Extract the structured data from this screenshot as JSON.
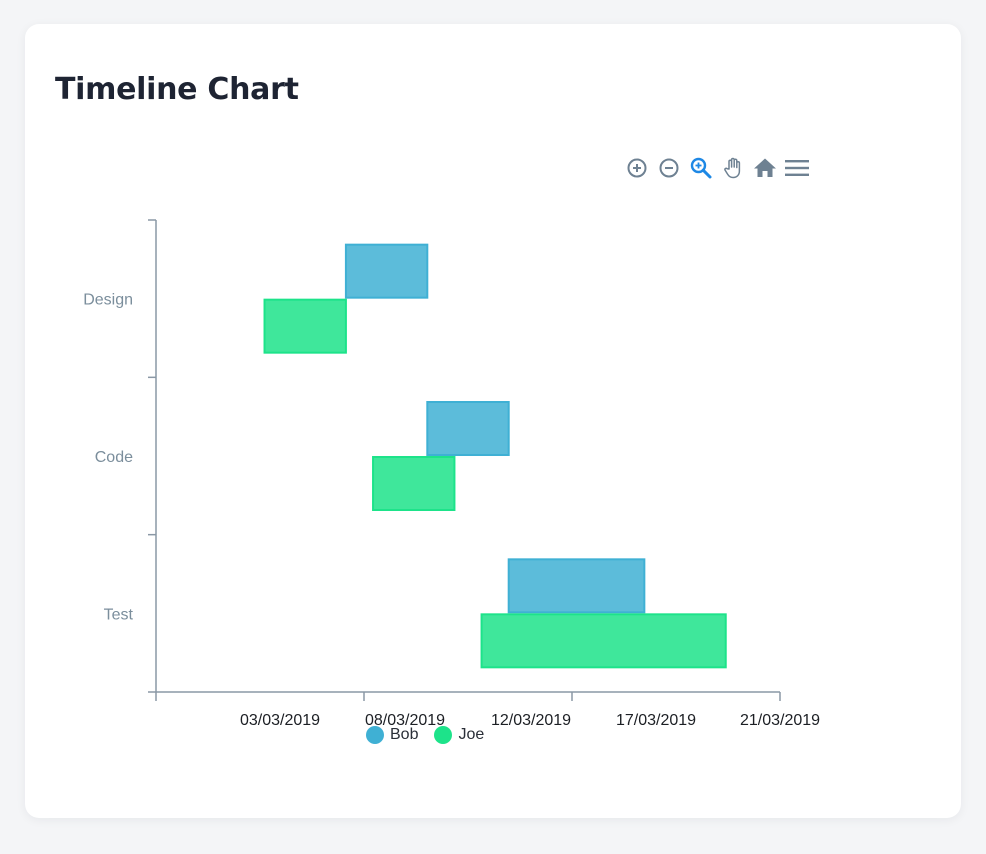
{
  "card": {
    "title": "Timeline Chart"
  },
  "toolbar": {
    "tools": [
      {
        "name": "zoom-in-icon"
      },
      {
        "name": "zoom-out-icon"
      },
      {
        "name": "selection-zoom-icon"
      },
      {
        "name": "pan-hand-icon"
      },
      {
        "name": "reset-home-icon"
      },
      {
        "name": "menu-icon"
      }
    ],
    "active_color": "#1e88e5",
    "icon_color": "#6e8192"
  },
  "chart_data": {
    "type": "bar",
    "orientation": "horizontal-range",
    "categories": [
      "Design",
      "Code",
      "Test"
    ],
    "x_ticks": [
      "03/03/2019",
      "08/03/2019",
      "12/03/2019",
      "17/03/2019",
      "21/03/2019"
    ],
    "x_range": [
      "2019-02-26",
      "2019-03-21"
    ],
    "series": [
      {
        "name": "Bob",
        "color": "#3fb0d4",
        "values": [
          {
            "category": "Design",
            "start": "2019-03-05",
            "end": "2019-03-08"
          },
          {
            "category": "Code",
            "start": "2019-03-08",
            "end": "2019-03-11"
          },
          {
            "category": "Test",
            "start": "2019-03-11",
            "end": "2019-03-16"
          }
        ]
      },
      {
        "name": "Joe",
        "color": "#1de38a",
        "values": [
          {
            "category": "Design",
            "start": "2019-03-02",
            "end": "2019-03-05"
          },
          {
            "category": "Code",
            "start": "2019-03-06",
            "end": "2019-03-09"
          },
          {
            "category": "Test",
            "start": "2019-03-10",
            "end": "2019-03-19"
          }
        ]
      }
    ],
    "legend": "bottom-center",
    "grid": false
  }
}
